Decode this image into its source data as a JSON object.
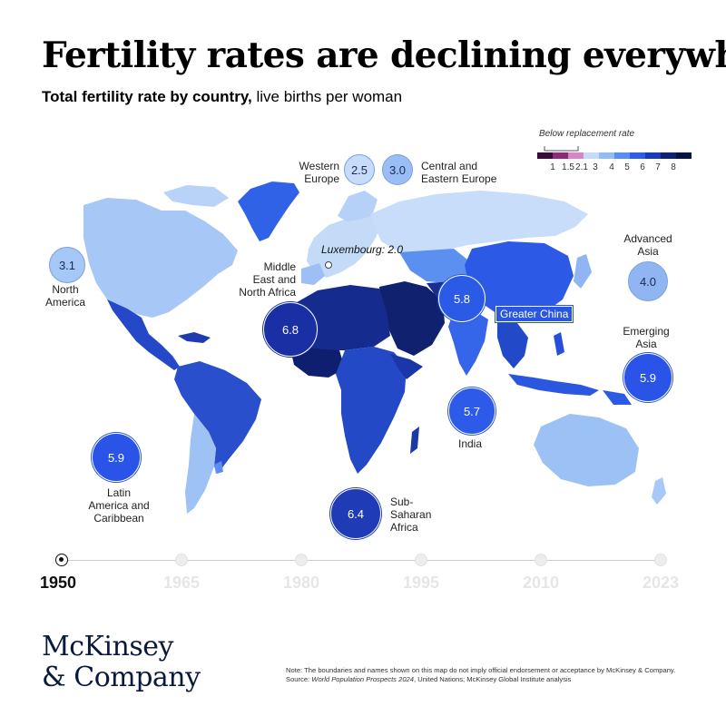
{
  "title": "Fertility rates are declining everywhere.",
  "subtitle_bold": "Total fertility rate by country,",
  "subtitle_rest": " live births per woman",
  "legend": {
    "caption": "Below replacement rate",
    "labels": [
      "1",
      "1.5",
      "2.1",
      "3",
      "4",
      "5",
      "6",
      "7",
      "8"
    ],
    "colors": [
      "#3a0a3c",
      "#8e2a7a",
      "#d686c6",
      "#c4dcf8",
      "#94bcf4",
      "#5a8ef0",
      "#2d5ee8",
      "#1a3bb8",
      "#0f2272",
      "#081440"
    ]
  },
  "annotation_luxembourg": "Luxembourg: 2.0",
  "regions": [
    {
      "id": "north-america",
      "name_lines": [
        "North",
        "America"
      ],
      "value": "3.1",
      "color": "#a5c8f6"
    },
    {
      "id": "western-europe",
      "name_lines": [
        "Western",
        "Europe"
      ],
      "value": "2.5",
      "color": "#c6dcfa"
    },
    {
      "id": "central-eastern-europe",
      "name_lines": [
        "Central and",
        "Eastern Europe"
      ],
      "value": "3.0",
      "color": "#99bdf4"
    },
    {
      "id": "middle-east-north-africa",
      "name_lines": [
        "Middle",
        "East and",
        "North Africa"
      ],
      "value": "6.8",
      "color": "#1a2fa4"
    },
    {
      "id": "greater-china",
      "name_lines": [
        "Greater China"
      ],
      "value": "5.8",
      "color": "#2b5ae6"
    },
    {
      "id": "advanced-asia",
      "name_lines": [
        "Advanced",
        "Asia"
      ],
      "value": "4.0",
      "color": "#90b6f2"
    },
    {
      "id": "emerging-asia",
      "name_lines": [
        "Emerging",
        "Asia"
      ],
      "value": "5.9",
      "color": "#2a54e8"
    },
    {
      "id": "india",
      "name_lines": [
        "India"
      ],
      "value": "5.7",
      "color": "#2d5ae8"
    },
    {
      "id": "latin-america-caribbean",
      "name_lines": [
        "Latin",
        "America and",
        "Caribbean"
      ],
      "value": "5.9",
      "color": "#2a54e8"
    },
    {
      "id": "sub-saharan-africa",
      "name_lines": [
        "Sub-",
        "Saharan",
        "Africa"
      ],
      "value": "6.4",
      "color": "#1f3cb6"
    }
  ],
  "timeline": {
    "years": [
      "1950",
      "1965",
      "1980",
      "1995",
      "2010",
      "2023"
    ],
    "selected": "1950"
  },
  "logo_lines": [
    "McKinsey",
    "& Company"
  ],
  "note": {
    "line1": "Note: The boundaries and names shown on this map do not imply official endorsement or acceptance by McKinsey & Company.",
    "source_prefix": "Source: ",
    "source_italic": "World Population Prospects 2024",
    "source_rest": ", United Nations; McKinsey Global Institute analysis"
  }
}
